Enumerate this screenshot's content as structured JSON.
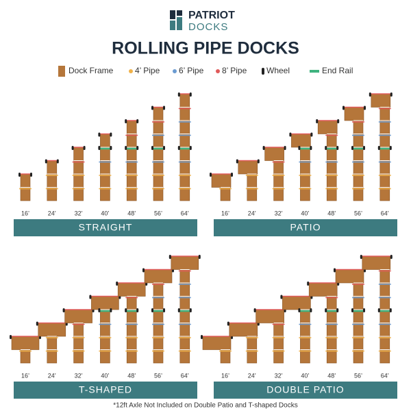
{
  "logo": {
    "line1": "PATRIOT",
    "line2": "DOCKS"
  },
  "title": "ROLLING PIPE DOCKS",
  "legend": [
    "Dock Frame",
    "4’ Pipe",
    "6’ Pipe",
    "8’ Pipe",
    "Wheel",
    "End Rail"
  ],
  "panels": [
    {
      "name": "STRAIGHT",
      "lengths": [
        "16’",
        "24’",
        "32’",
        "40’",
        "48’",
        "56’",
        "64’"
      ]
    },
    {
      "name": "PATIO",
      "lengths": [
        "16’",
        "24’",
        "32’",
        "40’",
        "48’",
        "56’",
        "64’"
      ]
    },
    {
      "name": "T-SHAPED",
      "lengths": [
        "16’",
        "24’",
        "32’",
        "40’",
        "48’",
        "56’",
        "64’"
      ]
    },
    {
      "name": "DOUBLE PATIO",
      "lengths": [
        "16’",
        "24’",
        "32’",
        "40’",
        "48’",
        "56’",
        "64’"
      ]
    }
  ],
  "footnote": "*12ft Axle Not Included on Double Patio and T-shaped Docks"
}
